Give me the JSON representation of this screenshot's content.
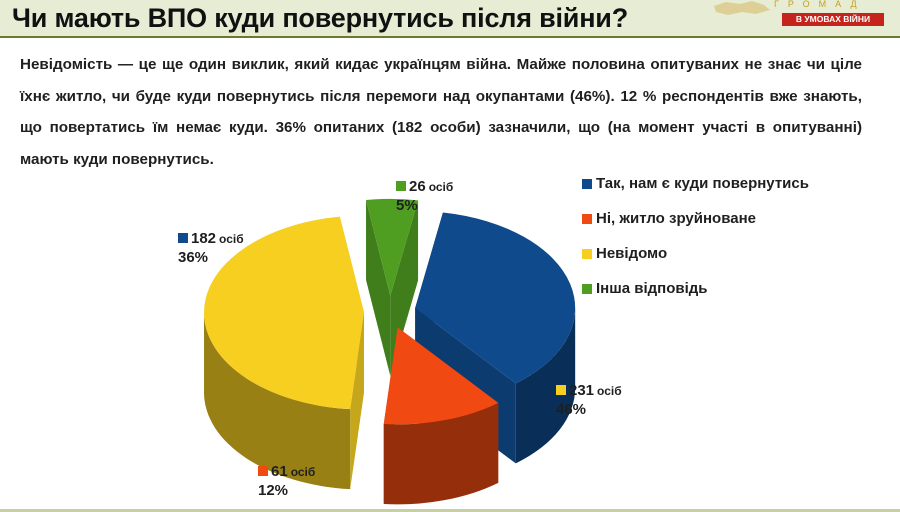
{
  "header": {
    "title": "Чи мають ВПО куди повернутись після війни?",
    "logo_name": "ГРОМАД",
    "logo_ribbon": "В УМОВАХ ВІЙНИ"
  },
  "body_text": "Невідомість — це ще один виклик, який кидає українцям війна. Майже половина опитуваних не знає чи ціле їхнє житло, чи буде куди повернутись після перемоги над окупантами (46%). 12 % респондентів вже знають, що повертатись їм немає куди. 36% опитаних (182 особи) зазначили, що (на момент участі в опитуванні) мають куди повернутись.",
  "chart_data": {
    "type": "pie",
    "style": "3d-exploded",
    "legend_position": "right",
    "categories": [
      "Так, нам є куди повернутись",
      "Ні, житло зруйноване",
      "Невідомо",
      "Інша відповідь"
    ],
    "values": [
      182,
      61,
      231,
      26
    ],
    "percent_labels": [
      "36%",
      "12%",
      "46%",
      "5%"
    ],
    "count_labels": [
      "182",
      "61",
      "231",
      "26"
    ],
    "unit_label": "осіб",
    "colors": [
      "#0f4a8c",
      "#f04a12",
      "#f7cf21",
      "#4f9e22"
    ]
  }
}
